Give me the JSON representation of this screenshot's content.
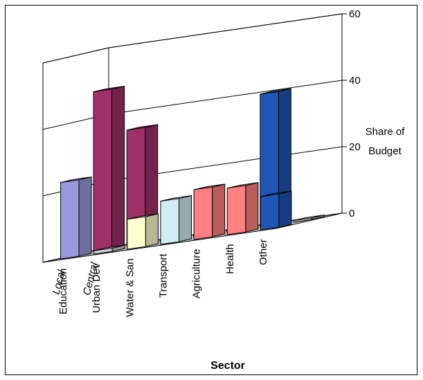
{
  "chart_data": {
    "type": "bar",
    "variant": "3d-clustered-depth",
    "title": "",
    "xlabel": "Sector",
    "ylabel": "Share of Budget",
    "ylim": [
      0,
      60
    ],
    "yticks": [
      0,
      20,
      40,
      60
    ],
    "grid": true,
    "legend": "none",
    "categories": [
      "Education",
      "Urban Dev",
      "Water & San",
      "Transport",
      "Agriculture",
      "Health",
      "Other"
    ],
    "series": [
      {
        "name": "Local",
        "values": [
          23,
          1,
          9,
          13,
          15,
          14,
          10
        ],
        "colors": [
          "#9999dd",
          "#d0ccd8",
          "#ffffcc",
          "#cfeff2",
          "#ff8080",
          "#ff8080",
          "#1f55b5"
        ]
      },
      {
        "name": "Central",
        "values": [
          48,
          35,
          0.5,
          0.5,
          0.5,
          40,
          0.5
        ],
        "colors": [
          "#a03068",
          "#a03068",
          "#c8c8c8",
          "#c8c8c8",
          "#7a1a4c",
          "#1f55b5",
          "#c8c8c8"
        ]
      }
    ]
  }
}
